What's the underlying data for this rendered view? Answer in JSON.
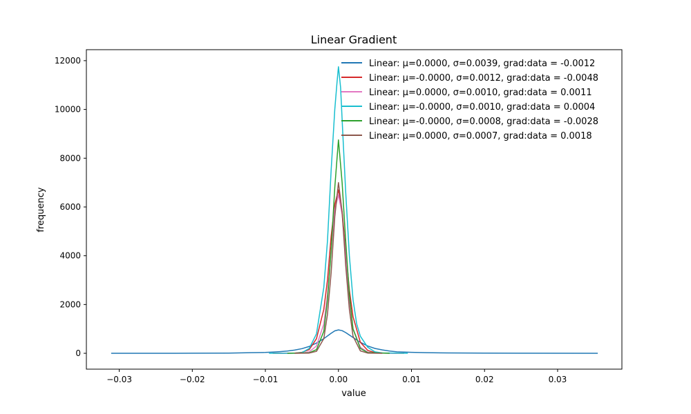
{
  "chart_data": {
    "type": "line",
    "title": "Linear Gradient",
    "xlabel": "value",
    "ylabel": "frequency",
    "xlim": [
      -0.0345,
      0.0388
    ],
    "ylim": [
      -650,
      12450
    ],
    "x_ticks": [
      -0.03,
      -0.02,
      -0.01,
      0.0,
      0.01,
      0.02,
      0.03
    ],
    "x_tick_labels": [
      "−0.03",
      "−0.02",
      "−0.01",
      "0.00",
      "0.01",
      "0.02",
      "0.03"
    ],
    "y_ticks": [
      0,
      2000,
      4000,
      6000,
      8000,
      10000,
      12000
    ],
    "y_tick_labels": [
      "0",
      "2000",
      "4000",
      "6000",
      "8000",
      "10000",
      "12000"
    ],
    "grid": false,
    "legend_position": "top-right",
    "series": [
      {
        "name": "Linear: μ=0.0000, σ=0.0039, grad:data = -0.0012",
        "color": "#1f77b4",
        "points": [
          [
            -0.0311,
            0
          ],
          [
            -0.025,
            0
          ],
          [
            -0.02,
            5
          ],
          [
            -0.015,
            10
          ],
          [
            -0.012,
            25
          ],
          [
            -0.01,
            35
          ],
          [
            -0.009,
            50
          ],
          [
            -0.008,
            70
          ],
          [
            -0.007,
            90
          ],
          [
            -0.006,
            130
          ],
          [
            -0.005,
            190
          ],
          [
            -0.004,
            280
          ],
          [
            -0.003,
            420
          ],
          [
            -0.002,
            600
          ],
          [
            -0.001,
            820
          ],
          [
            -0.0005,
            920
          ],
          [
            0.0,
            960
          ],
          [
            0.0005,
            930
          ],
          [
            0.001,
            850
          ],
          [
            0.002,
            650
          ],
          [
            0.003,
            450
          ],
          [
            0.004,
            300
          ],
          [
            0.005,
            200
          ],
          [
            0.006,
            140
          ],
          [
            0.007,
            90
          ],
          [
            0.008,
            60
          ],
          [
            0.01,
            40
          ],
          [
            0.012,
            25
          ],
          [
            0.015,
            15
          ],
          [
            0.02,
            8
          ],
          [
            0.025,
            3
          ],
          [
            0.0355,
            0
          ]
        ]
      },
      {
        "name": "Linear: μ=-0.0000, σ=0.0012, grad:data = -0.0048",
        "color": "#d62728",
        "points": [
          [
            -0.009,
            0
          ],
          [
            -0.006,
            10
          ],
          [
            -0.005,
            40
          ],
          [
            -0.004,
            150
          ],
          [
            -0.003,
            600
          ],
          [
            -0.002,
            1800
          ],
          [
            -0.0015,
            3000
          ],
          [
            -0.001,
            4800
          ],
          [
            -0.0005,
            6100
          ],
          [
            0.0,
            6700
          ],
          [
            0.0005,
            5800
          ],
          [
            0.001,
            4200
          ],
          [
            0.0015,
            2600
          ],
          [
            0.002,
            1500
          ],
          [
            0.003,
            450
          ],
          [
            0.004,
            120
          ],
          [
            0.005,
            30
          ],
          [
            0.006,
            8
          ],
          [
            0.009,
            0
          ]
        ]
      },
      {
        "name": "Linear: μ=0.0000, σ=0.0010, grad:data = 0.0011",
        "color": "#e377c2",
        "points": [
          [
            -0.008,
            0
          ],
          [
            -0.005,
            10
          ],
          [
            -0.004,
            60
          ],
          [
            -0.003,
            300
          ],
          [
            -0.002,
            1200
          ],
          [
            -0.0015,
            2400
          ],
          [
            -0.001,
            4200
          ],
          [
            -0.0005,
            5900
          ],
          [
            0.0,
            6500
          ],
          [
            0.0005,
            5700
          ],
          [
            0.001,
            4000
          ],
          [
            0.0015,
            2200
          ],
          [
            0.002,
            1000
          ],
          [
            0.003,
            250
          ],
          [
            0.004,
            50
          ],
          [
            0.005,
            8
          ],
          [
            0.008,
            0
          ]
        ]
      },
      {
        "name": "Linear: μ=-0.0000, σ=0.0010, grad:data = 0.0004",
        "color": "#17becf",
        "points": [
          [
            -0.0095,
            0
          ],
          [
            -0.006,
            5
          ],
          [
            -0.005,
            30
          ],
          [
            -0.004,
            200
          ],
          [
            -0.003,
            800
          ],
          [
            -0.002,
            2700
          ],
          [
            -0.0015,
            4600
          ],
          [
            -0.001,
            7500
          ],
          [
            -0.0005,
            10000
          ],
          [
            -0.0002,
            11100
          ],
          [
            0.0,
            11750
          ],
          [
            0.0003,
            10900
          ],
          [
            0.0006,
            9000
          ],
          [
            0.001,
            6600
          ],
          [
            0.0015,
            4000
          ],
          [
            0.002,
            2200
          ],
          [
            0.0025,
            1200
          ],
          [
            0.003,
            700
          ],
          [
            0.004,
            250
          ],
          [
            0.005,
            60
          ],
          [
            0.006,
            15
          ],
          [
            0.0095,
            0
          ]
        ]
      },
      {
        "name": "Linear: μ=-0.0000, σ=0.0008, grad:data = -0.0028",
        "color": "#2ca02c",
        "points": [
          [
            -0.007,
            0
          ],
          [
            -0.004,
            20
          ],
          [
            -0.003,
            150
          ],
          [
            -0.002,
            900
          ],
          [
            -0.0015,
            2200
          ],
          [
            -0.001,
            4200
          ],
          [
            -0.0005,
            6800
          ],
          [
            0.0,
            8750
          ],
          [
            0.0005,
            7000
          ],
          [
            0.001,
            4600
          ],
          [
            0.0015,
            2400
          ],
          [
            0.002,
            1000
          ],
          [
            0.003,
            200
          ],
          [
            0.004,
            30
          ],
          [
            0.007,
            0
          ]
        ]
      },
      {
        "name": "Linear: μ=0.0000, σ=0.0007, grad:data = 0.0018",
        "color": "#8c564b",
        "points": [
          [
            -0.006,
            0
          ],
          [
            -0.004,
            10
          ],
          [
            -0.003,
            80
          ],
          [
            -0.002,
            600
          ],
          [
            -0.0015,
            1600
          ],
          [
            -0.001,
            3300
          ],
          [
            -0.0005,
            5600
          ],
          [
            0.0,
            7000
          ],
          [
            0.0005,
            5800
          ],
          [
            0.001,
            3600
          ],
          [
            0.0015,
            1800
          ],
          [
            0.002,
            700
          ],
          [
            0.003,
            100
          ],
          [
            0.004,
            10
          ],
          [
            0.006,
            0
          ]
        ]
      }
    ]
  }
}
